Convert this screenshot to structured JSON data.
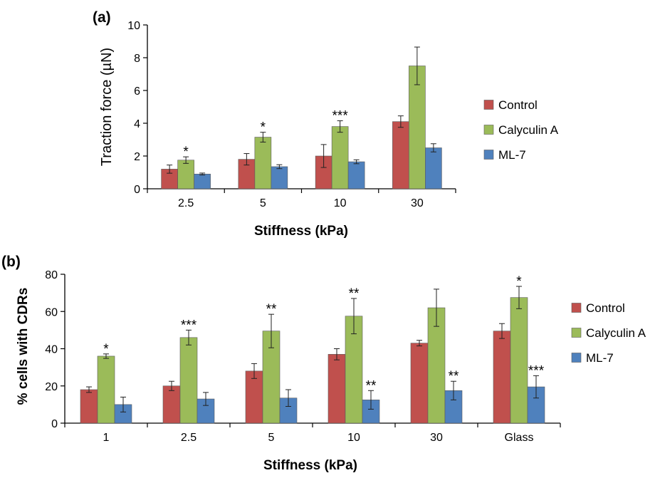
{
  "colors": {
    "control": "#C0504D",
    "calyculin": "#9BBB59",
    "ml7": "#4F81BD",
    "bar_edge": "#5a5a5a",
    "axis": "#000000"
  },
  "chart_data": [
    {
      "panel": "(a)",
      "type": "bar",
      "xlabel": "Stiffness (kPa)",
      "ylabel": "Traction force (µN)",
      "ylim": [
        0,
        10
      ],
      "yticks": [
        "0",
        "2",
        "4",
        "6",
        "8",
        "10"
      ],
      "categories": [
        "2.5",
        "5",
        "10",
        "30"
      ],
      "legend_position": "right",
      "grid": false,
      "series": [
        {
          "name": "Control",
          "values": [
            1.2,
            1.8,
            2.0,
            4.1
          ],
          "errors": [
            0.25,
            0.35,
            0.7,
            0.35
          ]
        },
        {
          "name": "Calyculin A",
          "values": [
            1.75,
            3.15,
            3.8,
            7.5
          ],
          "errors": [
            0.2,
            0.3,
            0.35,
            1.15
          ]
        },
        {
          "name": "ML-7",
          "values": [
            0.9,
            1.35,
            1.65,
            2.5
          ],
          "errors": [
            0.06,
            0.12,
            0.12,
            0.25
          ]
        }
      ],
      "annotations": [
        {
          "category": "2.5",
          "series": "Calyculin A",
          "text": "*"
        },
        {
          "category": "5",
          "series": "Calyculin A",
          "text": "*"
        },
        {
          "category": "10",
          "series": "Calyculin A",
          "text": "***"
        }
      ]
    },
    {
      "panel": "(b)",
      "type": "bar",
      "xlabel": "Stiffness (kPa)",
      "ylabel": "% cells with CDRs",
      "ylim": [
        0,
        80
      ],
      "yticks": [
        "0",
        "20",
        "40",
        "60",
        "80"
      ],
      "categories": [
        "1",
        "2.5",
        "5",
        "10",
        "30",
        "Glass"
      ],
      "legend_position": "right",
      "grid": false,
      "series": [
        {
          "name": "Control",
          "values": [
            18,
            20,
            28,
            37,
            43,
            49.5
          ],
          "errors": [
            1.5,
            2.5,
            4,
            3,
            1.5,
            4
          ]
        },
        {
          "name": "Calyculin A",
          "values": [
            36,
            46,
            49.5,
            57.5,
            62,
            67.5
          ],
          "errors": [
            1.2,
            4,
            9,
            9.5,
            10,
            6
          ]
        },
        {
          "name": "ML-7",
          "values": [
            10,
            13,
            13.5,
            12.5,
            17.5,
            19.5
          ],
          "errors": [
            4,
            3.5,
            4.5,
            5,
            5,
            6
          ]
        }
      ],
      "annotations": [
        {
          "category": "1",
          "series": "Calyculin A",
          "text": "*"
        },
        {
          "category": "2.5",
          "series": "Calyculin A",
          "text": "***"
        },
        {
          "category": "5",
          "series": "Calyculin A",
          "text": "**"
        },
        {
          "category": "10",
          "series": "Calyculin A",
          "text": "**"
        },
        {
          "category": "10",
          "series": "ML-7",
          "text": "**"
        },
        {
          "category": "30",
          "series": "ML-7",
          "text": "**"
        },
        {
          "category": "Glass",
          "series": "Calyculin A",
          "text": "*"
        },
        {
          "category": "Glass",
          "series": "ML-7",
          "text": "***"
        }
      ]
    }
  ]
}
